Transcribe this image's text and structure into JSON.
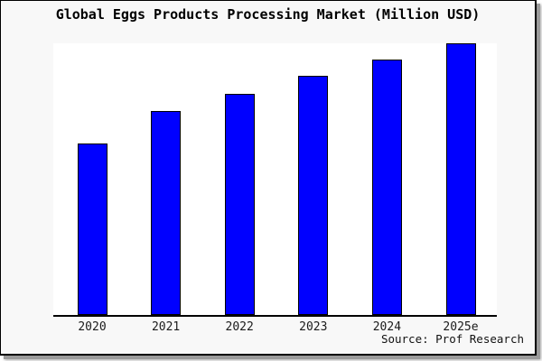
{
  "source": "Source: Prof Research",
  "colors": {
    "bar_fill": "#0000ff",
    "bar_edge": "#000000",
    "figure_bg": "#f8f8f8",
    "plot_bg": "#ffffff",
    "axis": "#000000",
    "text": "#1a1a1a"
  },
  "chart_data": {
    "type": "bar",
    "title": "Global Eggs Products Processing Market (Million USD)",
    "categories": [
      "2020",
      "2021",
      "2022",
      "2023",
      "2024",
      "2025e"
    ],
    "values": [
      63,
      75,
      81.5,
      88,
      94,
      100
    ],
    "values_are": "relative height, percent of tallest bar (no y-axis ticks shown)",
    "xlabel": "",
    "ylabel": "",
    "ylim": [
      0,
      100
    ],
    "grid": false,
    "legend": "none",
    "annotation": "Source: Prof Research"
  }
}
